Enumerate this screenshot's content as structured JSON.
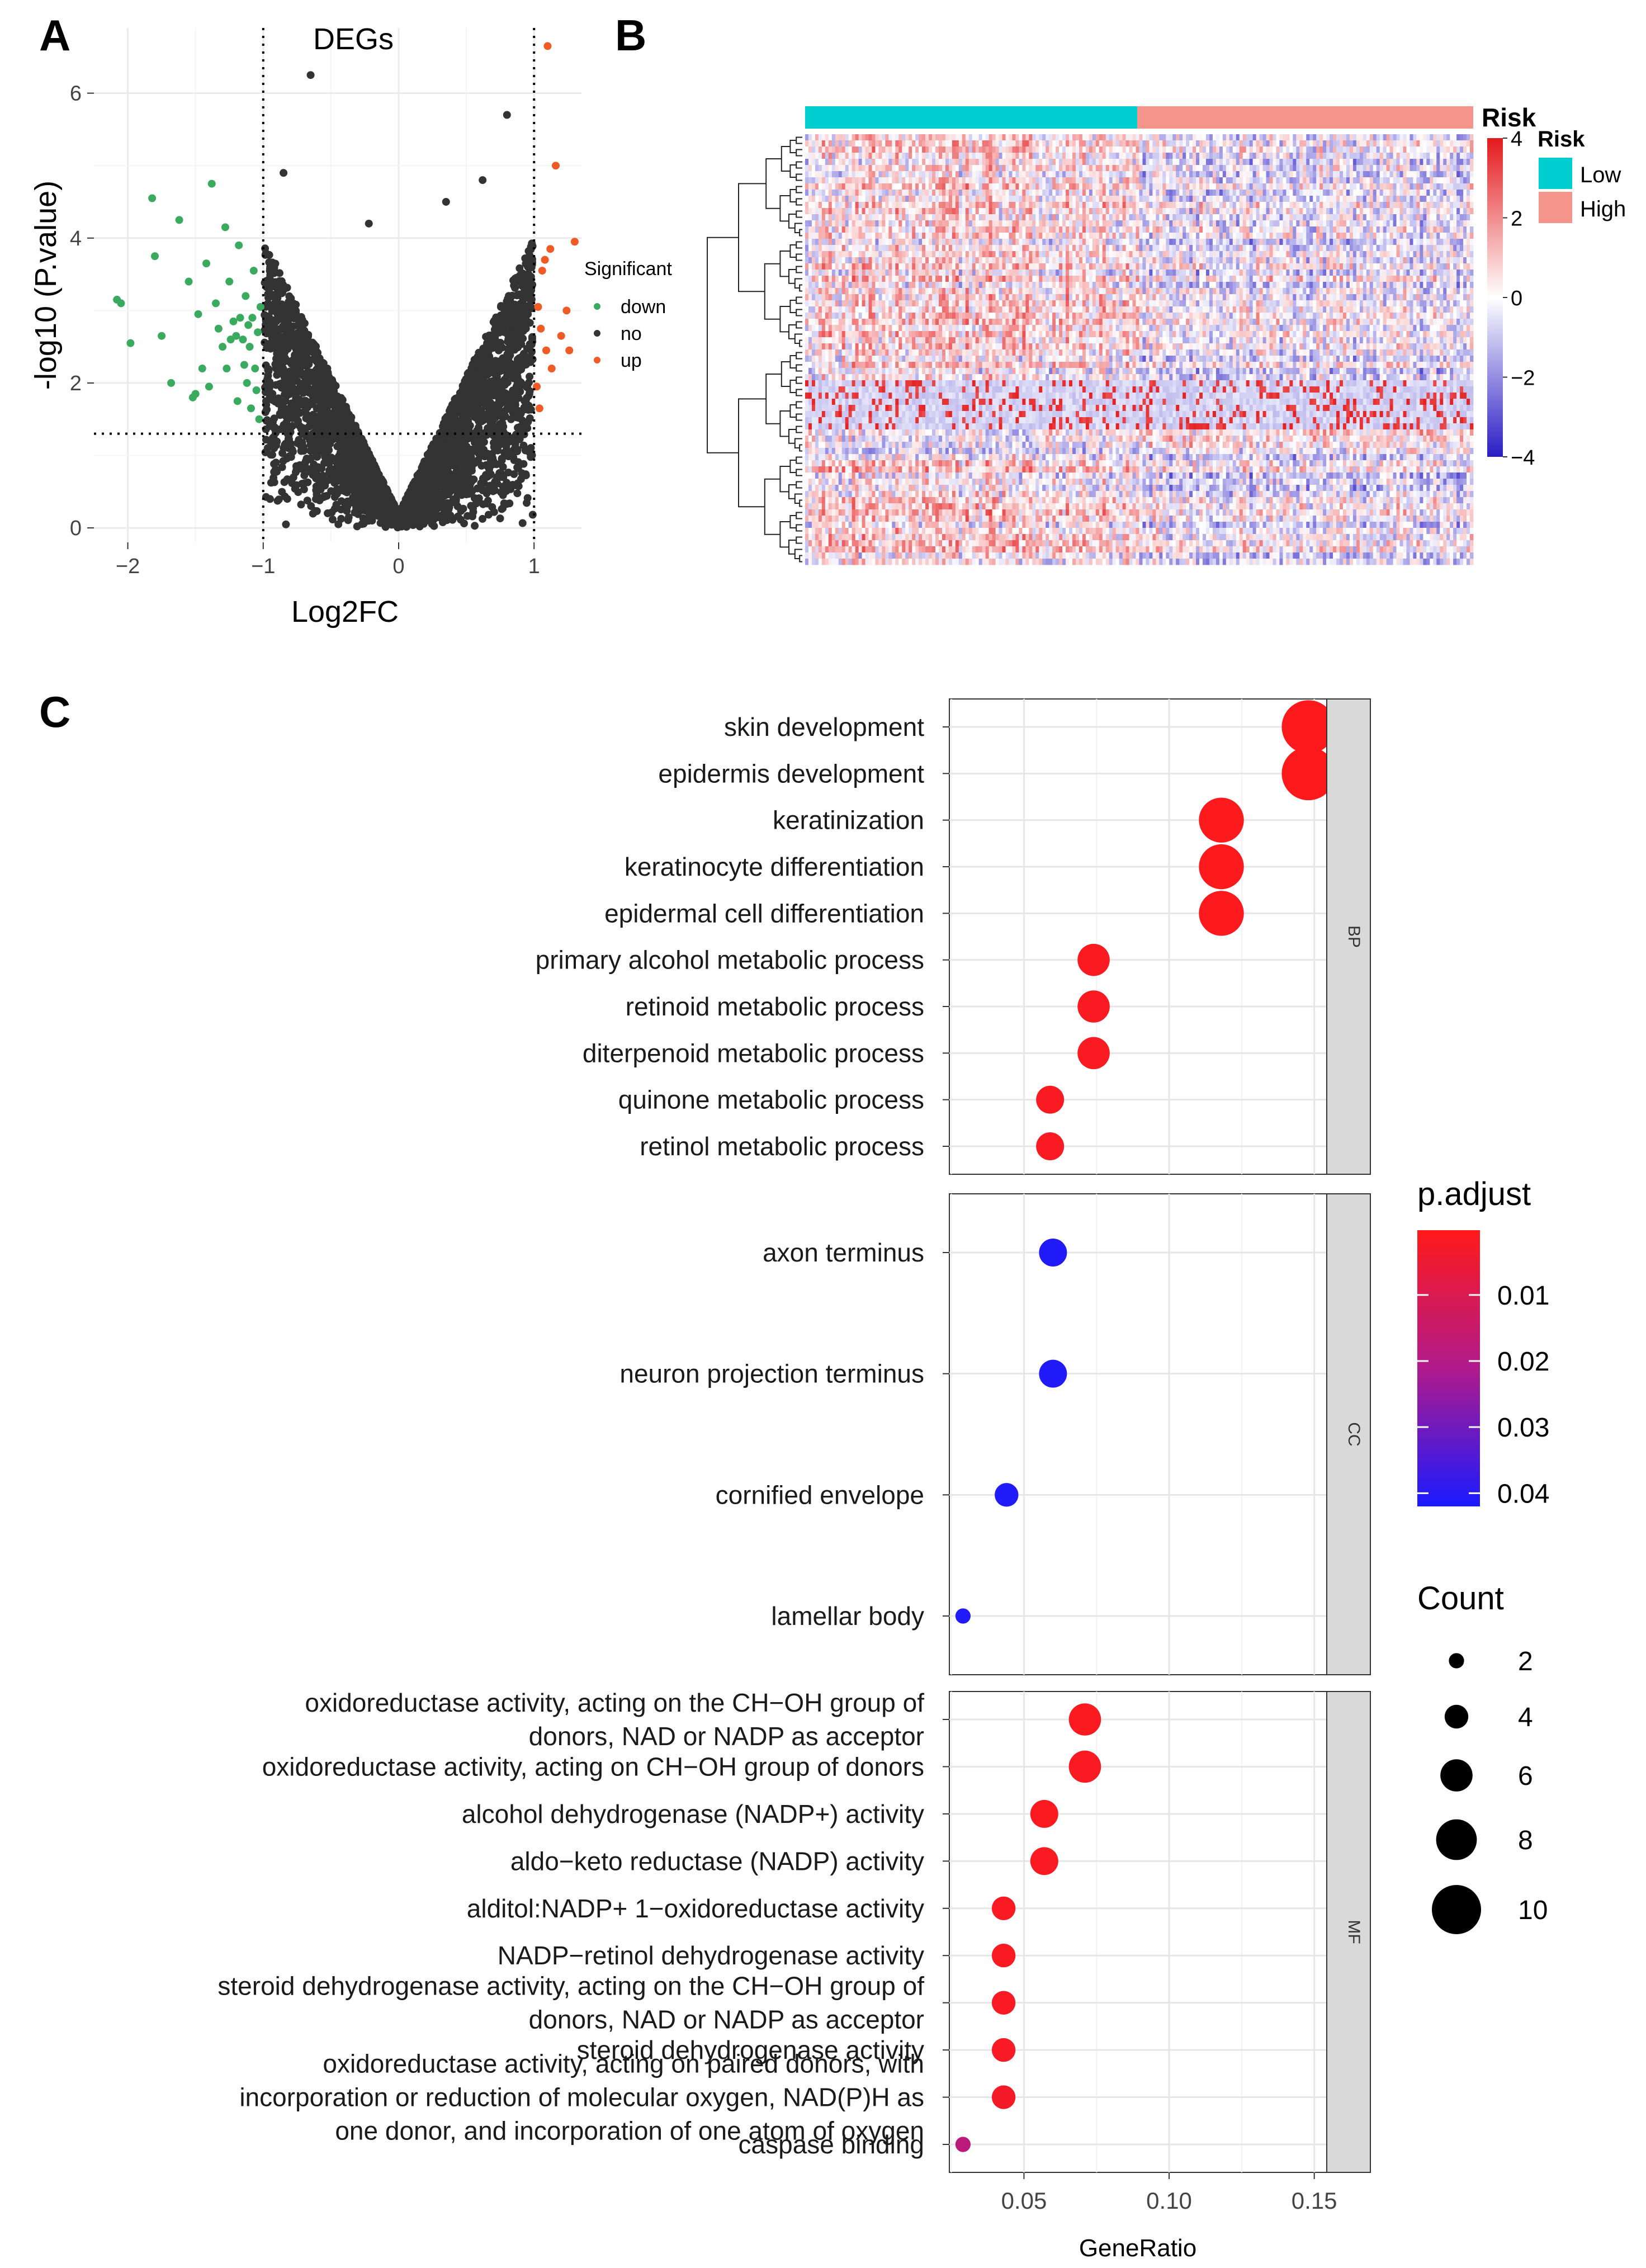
{
  "figure": {
    "panel_labels": [
      "A",
      "B",
      "C"
    ]
  },
  "chart_data": [
    {
      "panel": "A",
      "type": "scatter",
      "title": "DEGs",
      "xlabel": "Log2FC",
      "ylabel": "-log10 (P.value)",
      "xlim": [
        -2.25,
        1.35
      ],
      "ylim": [
        -0.2,
        6.9
      ],
      "x_ticks": [
        -2,
        -1,
        0,
        1
      ],
      "x_tick_labels": [
        "−2",
        "−1",
        "0",
        "1"
      ],
      "y_ticks": [
        0,
        2,
        4,
        6
      ],
      "y_tick_labels": [
        "0",
        "2",
        "4",
        "6"
      ],
      "thresholds": {
        "log2fc": [
          -1,
          1
        ],
        "neg_log10_p": 1.3
      },
      "legend": {
        "title": "Significant",
        "entries": [
          {
            "label": "down",
            "color": "#3aaa5f"
          },
          {
            "label": "no",
            "color": "#333333"
          },
          {
            "label": "up",
            "color": "#f05a24"
          }
        ]
      },
      "series": [
        {
          "name": "down",
          "color": "#3aaa5f",
          "points": [
            [
              -2.08,
              3.15
            ],
            [
              -2.05,
              3.1
            ],
            [
              -1.98,
              2.55
            ],
            [
              -1.82,
              4.55
            ],
            [
              -1.8,
              3.75
            ],
            [
              -1.75,
              2.65
            ],
            [
              -1.68,
              2.0
            ],
            [
              -1.62,
              4.25
            ],
            [
              -1.55,
              3.4
            ],
            [
              -1.52,
              1.8
            ],
            [
              -1.5,
              1.85
            ],
            [
              -1.48,
              2.95
            ],
            [
              -1.45,
              2.2
            ],
            [
              -1.42,
              3.65
            ],
            [
              -1.4,
              1.95
            ],
            [
              -1.38,
              4.75
            ],
            [
              -1.35,
              3.1
            ],
            [
              -1.33,
              2.75
            ],
            [
              -1.3,
              2.5
            ],
            [
              -1.28,
              4.15
            ],
            [
              -1.27,
              2.2
            ],
            [
              -1.25,
              3.4
            ],
            [
              -1.24,
              2.6
            ],
            [
              -1.22,
              2.85
            ],
            [
              -1.2,
              2.65
            ],
            [
              -1.19,
              1.75
            ],
            [
              -1.18,
              3.9
            ],
            [
              -1.17,
              2.9
            ],
            [
              -1.15,
              2.6
            ],
            [
              -1.14,
              2.25
            ],
            [
              -1.13,
              3.2
            ],
            [
              -1.12,
              2.0
            ],
            [
              -1.11,
              2.8
            ],
            [
              -1.1,
              2.5
            ],
            [
              -1.09,
              1.65
            ],
            [
              -1.08,
              2.9
            ],
            [
              -1.07,
              3.55
            ],
            [
              -1.06,
              2.2
            ],
            [
              -1.05,
              1.9
            ],
            [
              -1.04,
              2.7
            ],
            [
              -1.03,
              1.5
            ],
            [
              -1.02,
              3.05
            ]
          ]
        },
        {
          "name": "up",
          "color": "#f05a24",
          "points": [
            [
              1.02,
              1.95
            ],
            [
              1.03,
              3.05
            ],
            [
              1.04,
              1.65
            ],
            [
              1.05,
              2.75
            ],
            [
              1.06,
              3.55
            ],
            [
              1.08,
              3.7
            ],
            [
              1.09,
              2.45
            ],
            [
              1.1,
              6.65
            ],
            [
              1.12,
              3.85
            ],
            [
              1.13,
              2.2
            ],
            [
              1.16,
              5.0
            ],
            [
              1.2,
              2.65
            ],
            [
              1.24,
              3.0
            ],
            [
              1.26,
              2.45
            ],
            [
              1.3,
              3.95
            ]
          ]
        }
      ],
      "note": "Grey 'no' points form a dense V-shaped cloud bounded by |Log2FC| < 1."
    },
    {
      "panel": "B",
      "type": "heatmap",
      "annotation_title": "Risk",
      "annotation_groups": [
        {
          "label": "Low",
          "color": "#00ced1",
          "fraction": 0.497
        },
        {
          "label": "High",
          "color": "#f4948a",
          "fraction": 0.503
        }
      ],
      "color_scale": {
        "min": -4,
        "max": 4,
        "low_color": "#2a1dc4",
        "mid_color": "#ffffff",
        "high_color": "#e31a1c"
      },
      "colorbar_ticks": [
        4,
        2,
        0,
        -2,
        -4
      ],
      "colorbar_tick_labels": [
        "4",
        "2",
        "0",
        "−2",
        "−4"
      ],
      "legend_title": "Risk",
      "legend_entries": [
        {
          "label": "Low",
          "color": "#00ced1"
        },
        {
          "label": "High",
          "color": "#f4948a"
        }
      ]
    },
    {
      "panel": "C",
      "type": "scatter",
      "subtype": "dotplot",
      "xlabel": "GeneRatio",
      "xlim": [
        0.0243,
        0.1543
      ],
      "x_ticks": [
        0.05,
        0.1,
        0.15
      ],
      "x_tick_labels": [
        "0.05",
        "0.10",
        "0.15"
      ],
      "color_legend": {
        "title": "p.adjust",
        "ticks": [
          0.01,
          0.02,
          0.03,
          0.04
        ],
        "tick_labels": [
          "0.01",
          "0.02",
          "0.03",
          "0.04"
        ],
        "range": [
          0.0002,
          0.042
        ],
        "low_color": "#ff1a1a",
        "high_color": "#1a1aff"
      },
      "size_legend": {
        "title": "Count",
        "values": [
          2,
          4,
          6,
          8,
          10
        ],
        "labels": [
          "2",
          "4",
          "6",
          "8",
          "10"
        ]
      },
      "facets": [
        {
          "name": "BP",
          "terms": [
            {
              "label": [
                "skin development"
              ],
              "gene_ratio": 0.148,
              "count": 11,
              "p_adjust": 0.0005
            },
            {
              "label": [
                "epidermis development"
              ],
              "gene_ratio": 0.148,
              "count": 11,
              "p_adjust": 0.0005
            },
            {
              "label": [
                "keratinization"
              ],
              "gene_ratio": 0.118,
              "count": 9,
              "p_adjust": 0.0006
            },
            {
              "label": [
                "keratinocyte differentiation"
              ],
              "gene_ratio": 0.118,
              "count": 9,
              "p_adjust": 0.0008
            },
            {
              "label": [
                "epidermal cell differentiation"
              ],
              "gene_ratio": 0.118,
              "count": 9,
              "p_adjust": 0.001
            },
            {
              "label": [
                "primary alcohol metabolic process"
              ],
              "gene_ratio": 0.074,
              "count": 6,
              "p_adjust": 0.0012
            },
            {
              "label": [
                "retinoid metabolic process"
              ],
              "gene_ratio": 0.074,
              "count": 6,
              "p_adjust": 0.0014
            },
            {
              "label": [
                "diterpenoid metabolic process"
              ],
              "gene_ratio": 0.074,
              "count": 6,
              "p_adjust": 0.0016
            },
            {
              "label": [
                "quinone metabolic process"
              ],
              "gene_ratio": 0.059,
              "count": 5,
              "p_adjust": 0.0015
            },
            {
              "label": [
                "retinol metabolic process"
              ],
              "gene_ratio": 0.059,
              "count": 5,
              "p_adjust": 0.0017
            }
          ]
        },
        {
          "name": "CC",
          "terms": [
            {
              "label": [
                "axon terminus"
              ],
              "gene_ratio": 0.06,
              "count": 5,
              "p_adjust": 0.041
            },
            {
              "label": [
                "neuron projection terminus"
              ],
              "gene_ratio": 0.06,
              "count": 5,
              "p_adjust": 0.041
            },
            {
              "label": [
                "cornified envelope"
              ],
              "gene_ratio": 0.044,
              "count": 4,
              "p_adjust": 0.041
            },
            {
              "label": [
                "lamellar body"
              ],
              "gene_ratio": 0.029,
              "count": 2,
              "p_adjust": 0.041
            }
          ]
        },
        {
          "name": "MF",
          "terms": [
            {
              "label": [
                "oxidoreductase activity, acting on the CH−OH group of",
                "donors, NAD or NADP as acceptor"
              ],
              "gene_ratio": 0.071,
              "count": 6,
              "p_adjust": 0.0012
            },
            {
              "label": [
                "oxidoreductase activity, acting on CH−OH group of donors"
              ],
              "gene_ratio": 0.071,
              "count": 6,
              "p_adjust": 0.0014
            },
            {
              "label": [
                "alcohol dehydrogenase (NADP+) activity"
              ],
              "gene_ratio": 0.057,
              "count": 5,
              "p_adjust": 0.0012
            },
            {
              "label": [
                "aldo−keto reductase (NADP) activity"
              ],
              "gene_ratio": 0.057,
              "count": 5,
              "p_adjust": 0.0014
            },
            {
              "label": [
                "alditol:NADP+ 1−oxidoreductase activity"
              ],
              "gene_ratio": 0.043,
              "count": 4,
              "p_adjust": 0.0015
            },
            {
              "label": [
                "NADP−retinol dehydrogenase activity"
              ],
              "gene_ratio": 0.043,
              "count": 4,
              "p_adjust": 0.0016
            },
            {
              "label": [
                "steroid dehydrogenase activity, acting on the CH−OH group of",
                "donors, NAD or NADP as acceptor"
              ],
              "gene_ratio": 0.043,
              "count": 4,
              "p_adjust": 0.0018
            },
            {
              "label": [
                "steroid dehydrogenase activity"
              ],
              "gene_ratio": 0.043,
              "count": 4,
              "p_adjust": 0.002
            },
            {
              "label": [
                "oxidoreductase activity, acting on paired donors, with",
                "incorporation or reduction of molecular oxygen, NAD(P)H as",
                "one donor, and incorporation of one atom of oxygen"
              ],
              "gene_ratio": 0.043,
              "count": 4,
              "p_adjust": 0.0032
            },
            {
              "label": [
                "caspase binding"
              ],
              "gene_ratio": 0.029,
              "count": 2,
              "p_adjust": 0.018
            }
          ]
        }
      ]
    }
  ]
}
